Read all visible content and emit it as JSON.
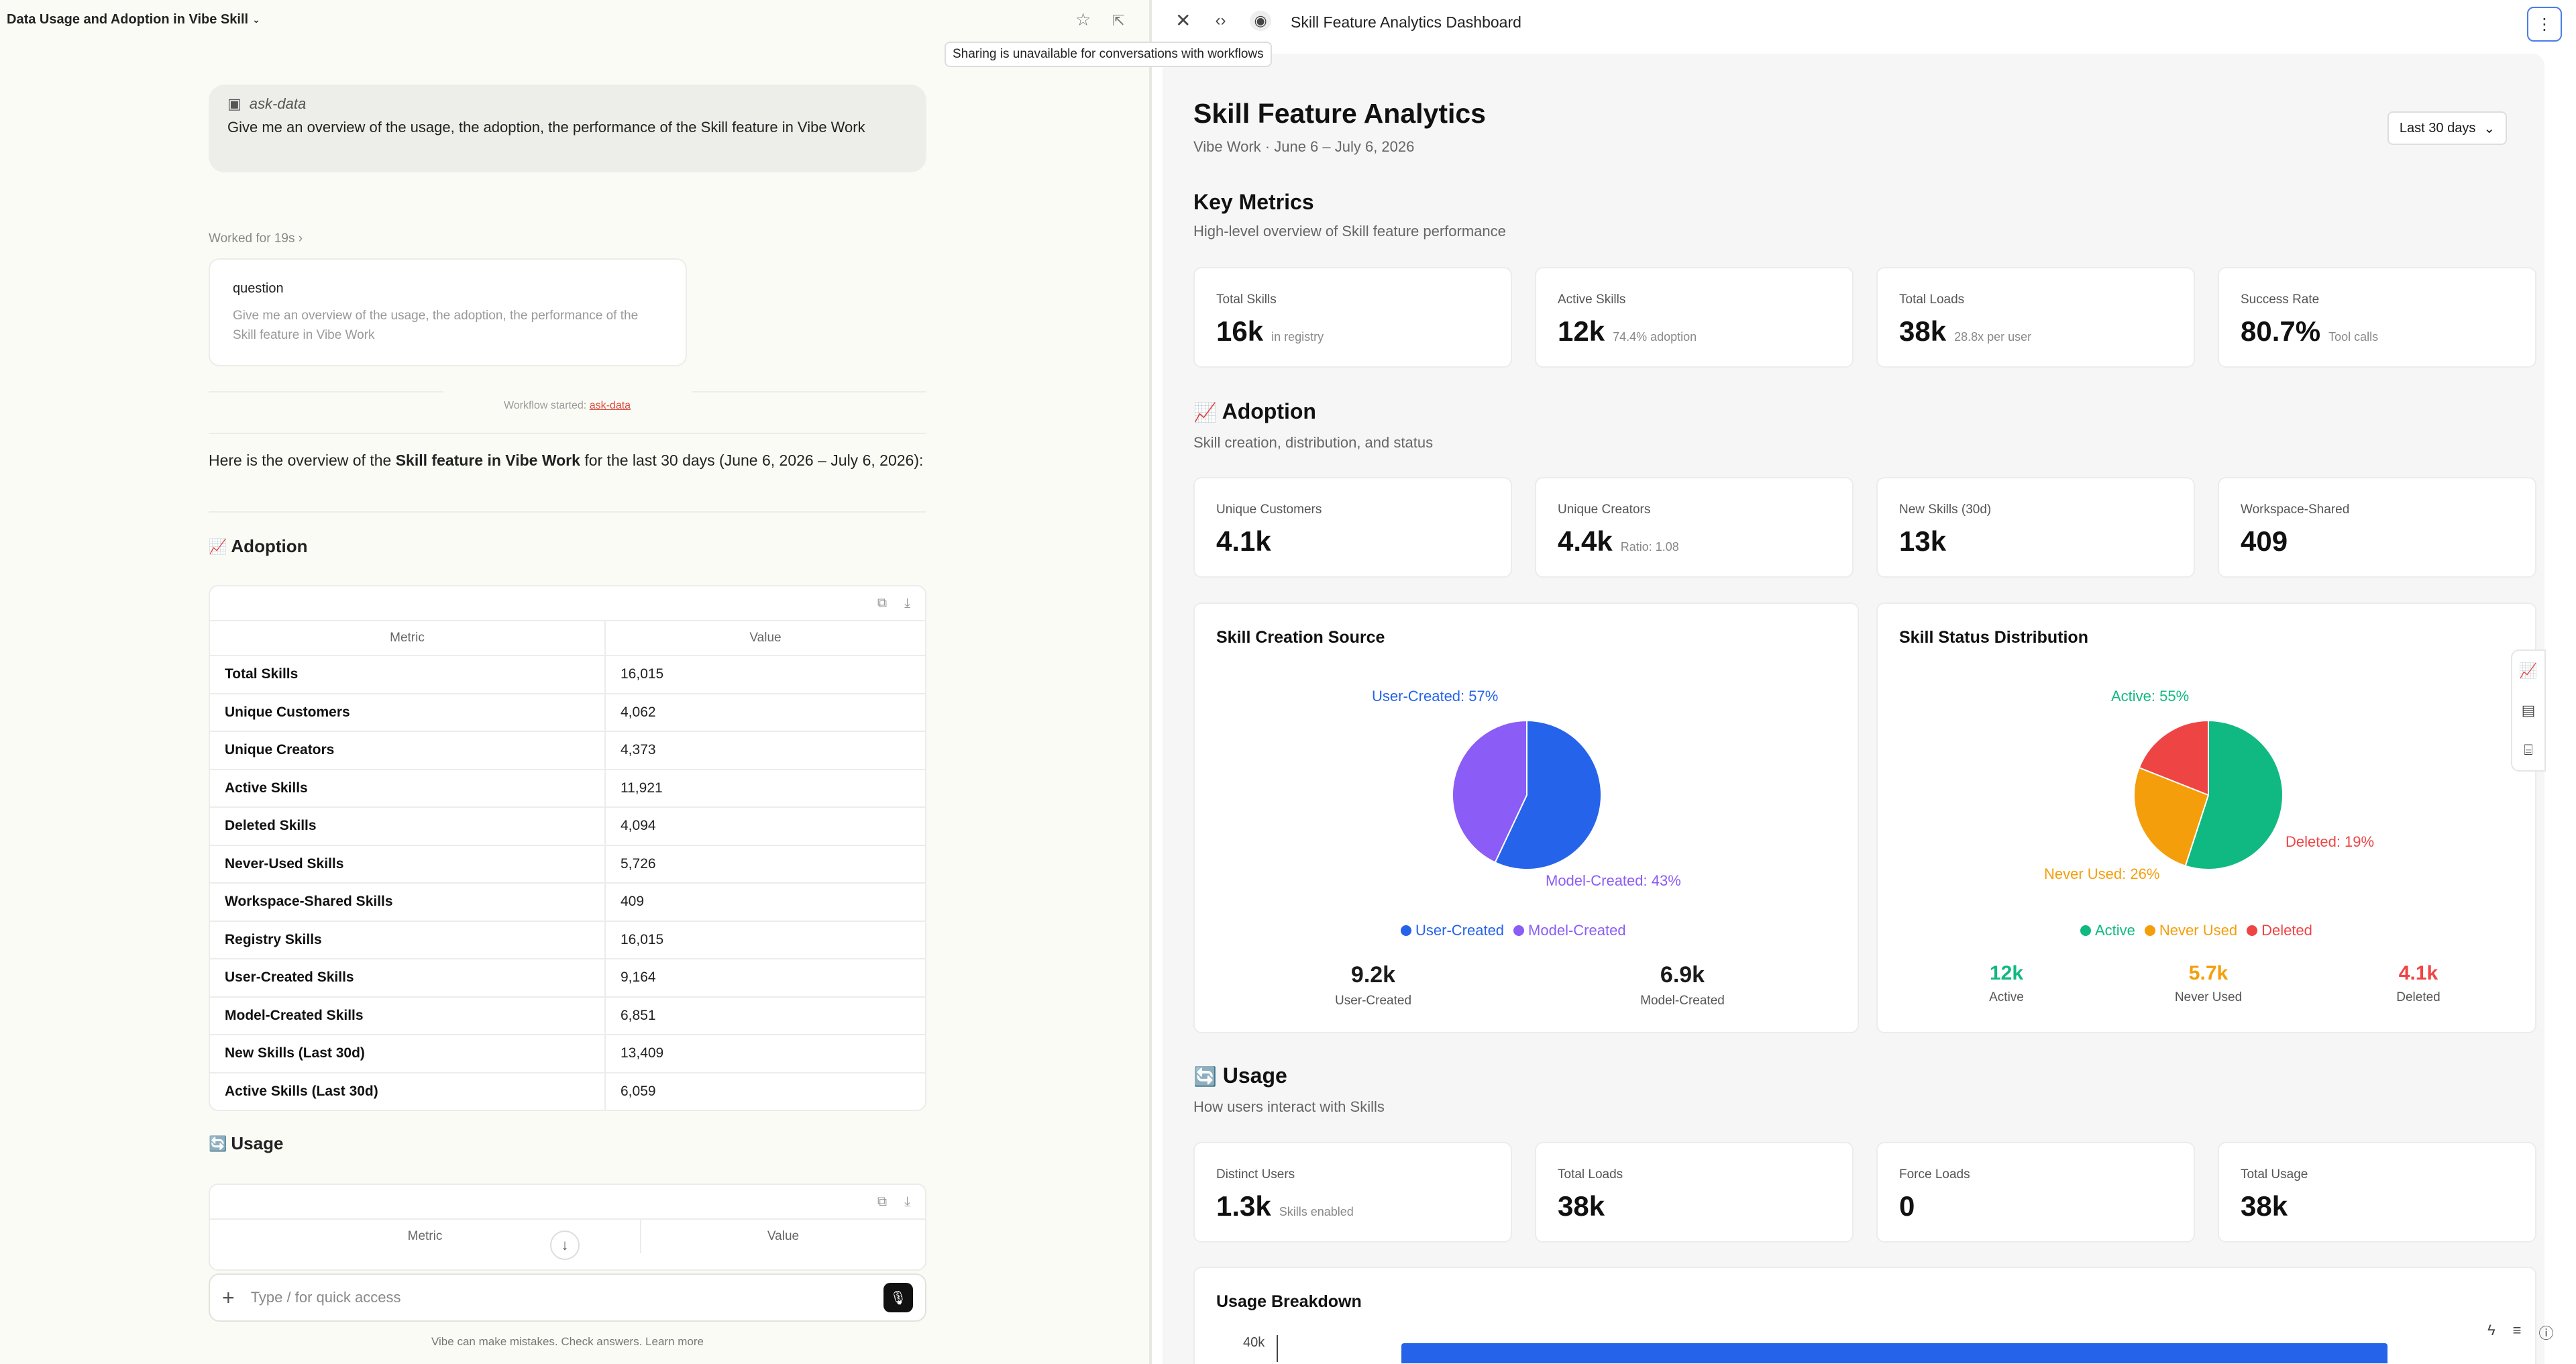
{
  "left": {
    "title": "Data Usage and Adoption in Vibe Skill",
    "user_message": {
      "tag": "ask-data",
      "text": "Give me an overview of the usage, the adoption, the performance of the Skill feature in Vibe Work"
    },
    "worked": "Worked for 19s",
    "question_card": {
      "title": "question",
      "text": "Give me an overview of the usage, the adoption, the performance of the Skill feature in Vibe Work"
    },
    "workflow": {
      "prefix": "Workflow started:",
      "link": "ask-data"
    },
    "intro": {
      "a": "Here is the overview of the ",
      "b": "Skill feature in Vibe Work",
      "c": " for the last 30 days (June 6, 2026 – July 6, 2026):"
    },
    "adoption_heading": "Adoption",
    "usage_heading": "Usage",
    "table_headers": [
      "Metric",
      "Value"
    ],
    "adoption_rows": [
      {
        "metric": "Total Skills",
        "value": "16,015"
      },
      {
        "metric": "Unique Customers",
        "value": "4,062"
      },
      {
        "metric": "Unique Creators",
        "value": "4,373"
      },
      {
        "metric": "Active Skills",
        "value": "11,921"
      },
      {
        "metric": "Deleted Skills",
        "value": "4,094"
      },
      {
        "metric": "Never-Used Skills",
        "value": "5,726"
      },
      {
        "metric": "Workspace-Shared Skills",
        "value": "409"
      },
      {
        "metric": "Registry Skills",
        "value": "16,015"
      },
      {
        "metric": "User-Created Skills",
        "value": "9,164"
      },
      {
        "metric": "Model-Created Skills",
        "value": "6,851"
      },
      {
        "metric": "New Skills (Last 30d)",
        "value": "13,409"
      },
      {
        "metric": "Active Skills (Last 30d)",
        "value": "6,059"
      }
    ],
    "composer_placeholder": "Type / for quick access",
    "footer": "Vibe can make mistakes. Check answers. Learn more"
  },
  "right": {
    "panel_title": "Skill Feature Analytics Dashboard",
    "tooltip": "Sharing is unavailable for conversations with workflows",
    "dashboard": {
      "title": "Skill Feature Analytics",
      "subtitle": "Vibe Work · June 6 – July 6, 2026",
      "range": "Last 30 days",
      "key_metrics": {
        "heading": "Key Metrics",
        "sub": "High-level overview of Skill feature performance",
        "cards": [
          {
            "label": "Total Skills",
            "value": "16k",
            "note": "in registry"
          },
          {
            "label": "Active Skills",
            "value": "12k",
            "note": "74.4% adoption"
          },
          {
            "label": "Total Loads",
            "value": "38k",
            "note": "28.8x per user"
          },
          {
            "label": "Success Rate",
            "value": "80.7%",
            "note": "Tool calls"
          }
        ]
      },
      "adoption": {
        "heading": "Adoption",
        "sub": "Skill creation, distribution, and status",
        "cards": [
          {
            "label": "Unique Customers",
            "value": "4.1k",
            "note": ""
          },
          {
            "label": "Unique Creators",
            "value": "4.4k",
            "note": "Ratio: 1.08"
          },
          {
            "label": "New Skills (30d)",
            "value": "13k",
            "note": ""
          },
          {
            "label": "Workspace-Shared",
            "value": "409",
            "note": ""
          }
        ]
      },
      "creation_chart": {
        "title": "Skill Creation Source",
        "label_a": "User-Created: 57%",
        "label_b": "Model-Created: 43%",
        "legend": [
          "User-Created",
          "Model-Created"
        ],
        "stats": [
          {
            "v": "9.2k",
            "l": "User-Created"
          },
          {
            "v": "6.9k",
            "l": "Model-Created"
          }
        ]
      },
      "status_chart": {
        "title": "Skill Status Distribution",
        "label_a": "Active: 55%",
        "label_b": "Never Used: 26%",
        "label_c": "Deleted: 19%",
        "legend": [
          "Active",
          "Never Used",
          "Deleted"
        ],
        "stats": [
          {
            "v": "12k",
            "l": "Active"
          },
          {
            "v": "5.7k",
            "l": "Never Used"
          },
          {
            "v": "4.1k",
            "l": "Deleted"
          }
        ]
      },
      "usage": {
        "heading": "Usage",
        "sub": "How users interact with Skills",
        "cards": [
          {
            "label": "Distinct Users",
            "value": "1.3k",
            "note": "Skills enabled"
          },
          {
            "label": "Total Loads",
            "value": "38k",
            "note": ""
          },
          {
            "label": "Force Loads",
            "value": "0",
            "note": ""
          },
          {
            "label": "Total Usage",
            "value": "38k",
            "note": ""
          }
        ]
      },
      "breakdown": {
        "title": "Usage Breakdown",
        "tick": "40k"
      }
    }
  },
  "chart_data": [
    {
      "type": "pie",
      "title": "Skill Creation Source",
      "categories": [
        "User-Created",
        "Model-Created"
      ],
      "values": [
        57,
        43
      ],
      "colors": [
        "#2563eb",
        "#8b5cf6"
      ]
    },
    {
      "type": "pie",
      "title": "Skill Status Distribution",
      "categories": [
        "Active",
        "Never Used",
        "Deleted"
      ],
      "values": [
        55,
        26,
        19
      ],
      "colors": [
        "#10b981",
        "#f59e0b",
        "#ef4444"
      ]
    }
  ]
}
